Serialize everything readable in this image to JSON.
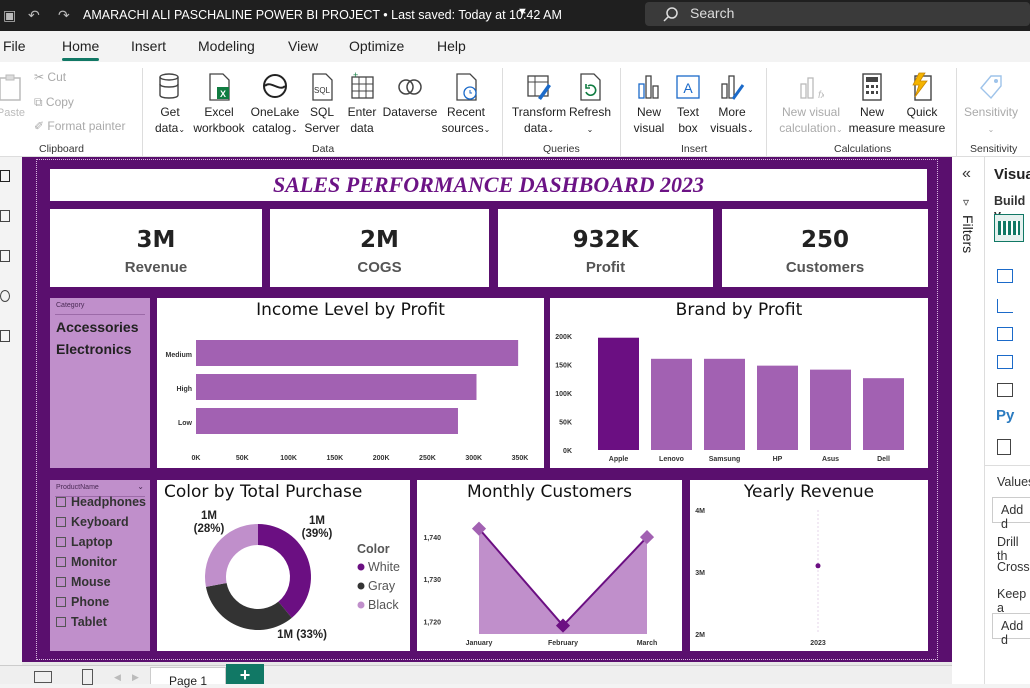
{
  "titlebar": {
    "title": "AMARACHI ALI PASCHALINE POWER BI PROJECT • Last saved: Today at 10:42 AM",
    "search": "Search"
  },
  "menu": {
    "tabs": [
      "File",
      "Home",
      "Insert",
      "Modeling",
      "View",
      "Optimize",
      "Help"
    ]
  },
  "ribbon": {
    "clipboard": {
      "paste": "Paste",
      "cut": "Cut",
      "copy": "Copy",
      "format_painter": "Format painter",
      "group": "Clipboard"
    },
    "data": {
      "get_data": "Get\ndata",
      "excel": "Excel\nworkbook",
      "onelake": "OneLake\ncatalog",
      "sql": "SQL\nServer",
      "enter": "Enter\ndata",
      "dataverse": "Dataverse",
      "recent": "Recent\nsources",
      "group": "Data"
    },
    "queries": {
      "transform": "Transform\ndata",
      "refresh": "Refresh",
      "group": "Queries"
    },
    "insert": {
      "new_visual": "New\nvisual",
      "text_box": "Text\nbox",
      "more_visuals": "More\nvisuals",
      "group": "Insert"
    },
    "calculations": {
      "new_visual_calc": "New visual\ncalculation",
      "new_measure": "New\nmeasure",
      "quick_measure": "Quick\nmeasure",
      "group": "Calculations"
    },
    "sensitivity": {
      "label": "Sensitivity",
      "group": "Sensitivity"
    }
  },
  "report": {
    "title": "SALES PERFORMANCE DASHBOARD 2023",
    "kpis": [
      {
        "value": "3M",
        "label": "Revenue"
      },
      {
        "value": "2M",
        "label": "COGS"
      },
      {
        "value": "932K",
        "label": "Profit"
      },
      {
        "value": "250",
        "label": "Customers"
      }
    ],
    "category_slicer": {
      "header": "Category",
      "items": [
        "Accessories",
        "Electronics"
      ]
    },
    "product_slicer": {
      "header": "ProductName",
      "items": [
        "Headphones",
        "Keyboard",
        "Laptop",
        "Monitor",
        "Mouse",
        "Phone",
        "Tablet"
      ]
    }
  },
  "chart_data": [
    {
      "type": "bar",
      "orientation": "horizontal",
      "title": "Income Level by Profit",
      "categories": [
        "Medium",
        "High",
        "Low"
      ],
      "values": [
        348000,
        303000,
        283000
      ],
      "xlim": [
        0,
        350000
      ],
      "xticks": [
        "0K",
        "50K",
        "100K",
        "150K",
        "200K",
        "250K",
        "300K",
        "350K"
      ],
      "color": "#a261b2"
    },
    {
      "type": "bar",
      "title": "Brand by Profit",
      "categories": [
        "Apple",
        "Lenovo",
        "Samsung",
        "HP",
        "Asus",
        "Dell"
      ],
      "values": [
        197000,
        160000,
        160000,
        148000,
        141000,
        126000
      ],
      "ylim": [
        0,
        200000
      ],
      "yticks": [
        "0K",
        "50K",
        "100K",
        "150K",
        "200K"
      ],
      "colors": [
        "#6b0f82",
        "#a261b2",
        "#a261b2",
        "#a261b2",
        "#a261b2",
        "#a261b2"
      ]
    },
    {
      "type": "pie",
      "title": "Color by Total Purchase",
      "legend_title": "Color",
      "slices": [
        {
          "name": "White",
          "value": 39,
          "label": "1M\n(39%)",
          "color": "#6b0f82"
        },
        {
          "name": "Gray",
          "value": 33,
          "label": "1M (33%)",
          "color": "#333333"
        },
        {
          "name": "Black",
          "value": 28,
          "label": "1M\n(28%)",
          "color": "#c08fcb"
        }
      ]
    },
    {
      "type": "area",
      "title": "Monthly Customers",
      "categories": [
        "January",
        "February",
        "March"
      ],
      "values": [
        1742,
        1719,
        1740
      ],
      "ylim": [
        1717,
        1745
      ],
      "yticks": [
        "1,720",
        "1,730",
        "1,740"
      ],
      "color": "#c08fcb",
      "marker_color": "#a261b2"
    },
    {
      "type": "line",
      "title": "Yearly Revenue",
      "categories": [
        "2023"
      ],
      "values": [
        3100000
      ],
      "ylim": [
        2000000,
        4000000
      ],
      "yticks": [
        "2M",
        "3M",
        "4M"
      ],
      "color": "#6b0f82"
    }
  ],
  "filters": {
    "label": "Filters"
  },
  "vispane": {
    "title": "Visua",
    "build": "Build v",
    "values": "Values",
    "add1": "Add d",
    "drill": "Drill th",
    "cross": "Cross-",
    "keep": "Keep a",
    "add2": "Add d",
    "py": "Py"
  },
  "pages": {
    "tab": "Page 1",
    "add": "+"
  }
}
